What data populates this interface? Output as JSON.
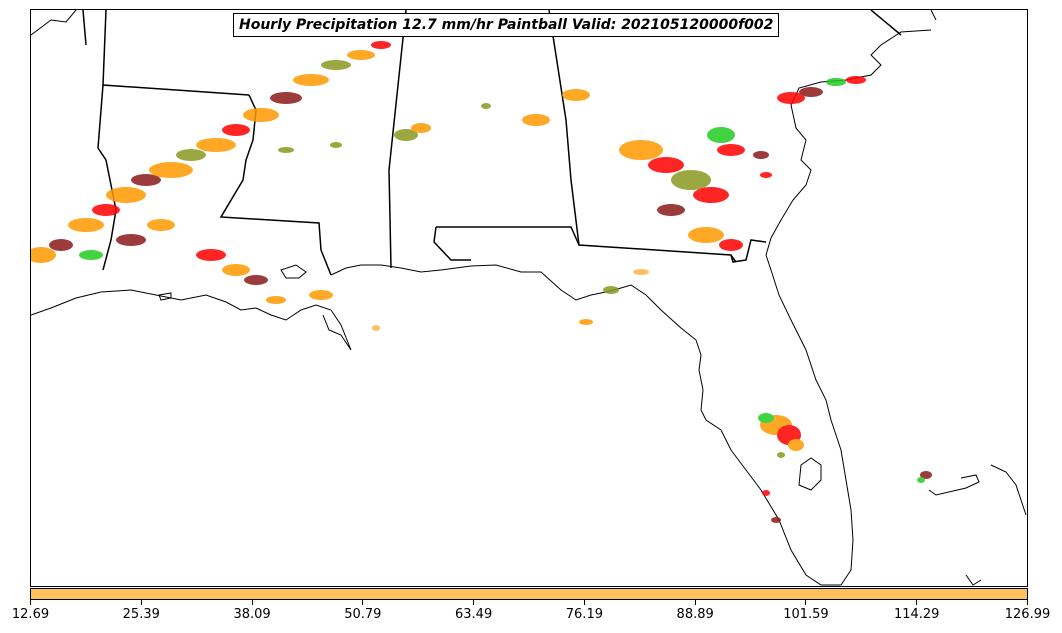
{
  "title": "Hourly Precipitation 12.7 mm/hr Paintball Valid: 202105120000f002",
  "colorbar": {
    "color": "#ffc060",
    "ticks": [
      "12.69",
      "25.39",
      "38.09",
      "50.79",
      "63.49",
      "76.19",
      "88.89",
      "101.59",
      "114.29",
      "126.99"
    ]
  },
  "colors": {
    "paint_dark_red": "#8b1a1a",
    "paint_red": "#ff0000",
    "paint_orange": "#ff9900",
    "paint_olive": "#8a9a20",
    "paint_green": "#22cc22",
    "paint_light_orange": "#ffb347",
    "coast_line": "#000000"
  }
}
